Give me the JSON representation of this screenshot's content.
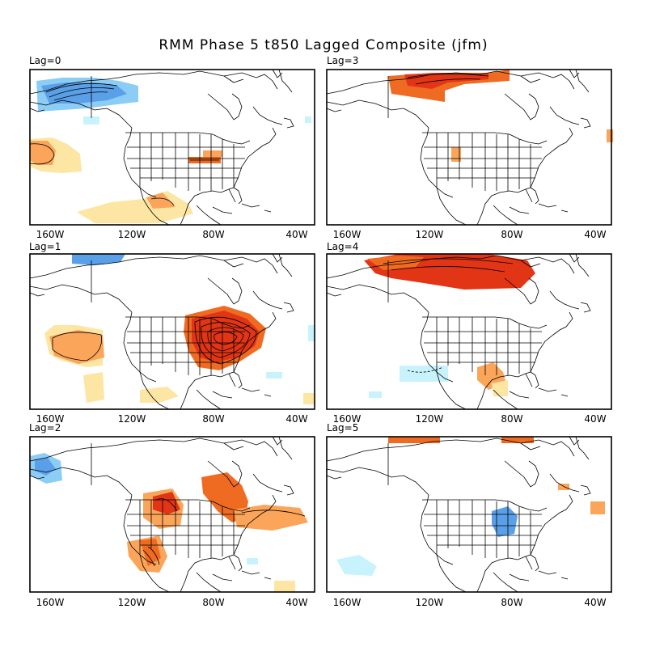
{
  "title": "RMM Phase 5 t850 Lagged Composite (jfm)",
  "lon_ticks": [
    "160W",
    "120W",
    "80W",
    "40W"
  ],
  "panels": [
    {
      "label": "Lag=0"
    },
    {
      "label": "Lag=3"
    },
    {
      "label": "Lag=1"
    },
    {
      "label": "Lag=4"
    },
    {
      "label": "Lag=2"
    },
    {
      "label": "Lag=5"
    }
  ],
  "colors": {
    "warm_light": "#fde5a4",
    "warm_mid": "#fba55a",
    "warm_strong": "#f06b22",
    "warm_deep": "#e23515",
    "cool_light": "#c8f3fd",
    "cool_mid": "#8ccdf6",
    "cool_strong": "#5aa0e8"
  }
}
